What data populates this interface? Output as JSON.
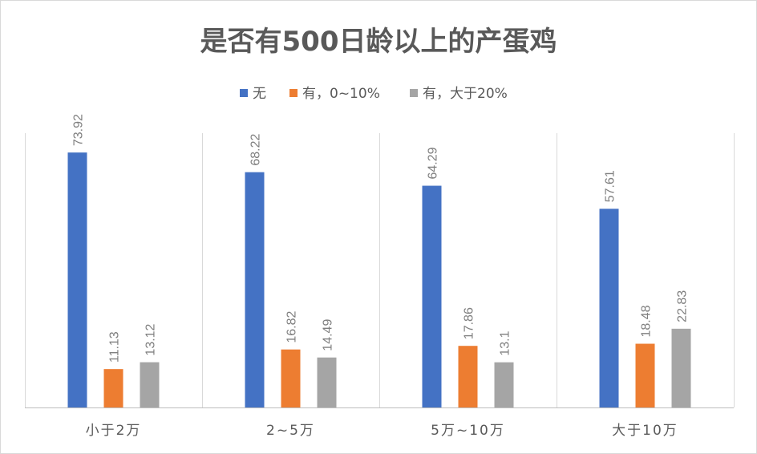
{
  "chart_data": {
    "type": "bar",
    "title": "是否有500日龄以上的产蛋鸡",
    "categories": [
      "小于2万",
      "2~5万",
      "5万~10万",
      "大于10万"
    ],
    "series": [
      {
        "name": "无",
        "color": "#4472c4",
        "values": [
          73.92,
          68.22,
          64.29,
          57.61
        ]
      },
      {
        "name": "有，0~10%",
        "color": "#ed7d31",
        "values": [
          11.13,
          16.82,
          17.86,
          18.48
        ]
      },
      {
        "name": "有，大于20%",
        "color": "#a5a5a5",
        "values": [
          13.12,
          14.49,
          13.1,
          22.83
        ]
      }
    ],
    "xlabel": "",
    "ylabel": "",
    "ylim": [
      0,
      80
    ],
    "grid": "vertical category separators",
    "legend_position": "top",
    "data_labels": "rotated above bars"
  }
}
